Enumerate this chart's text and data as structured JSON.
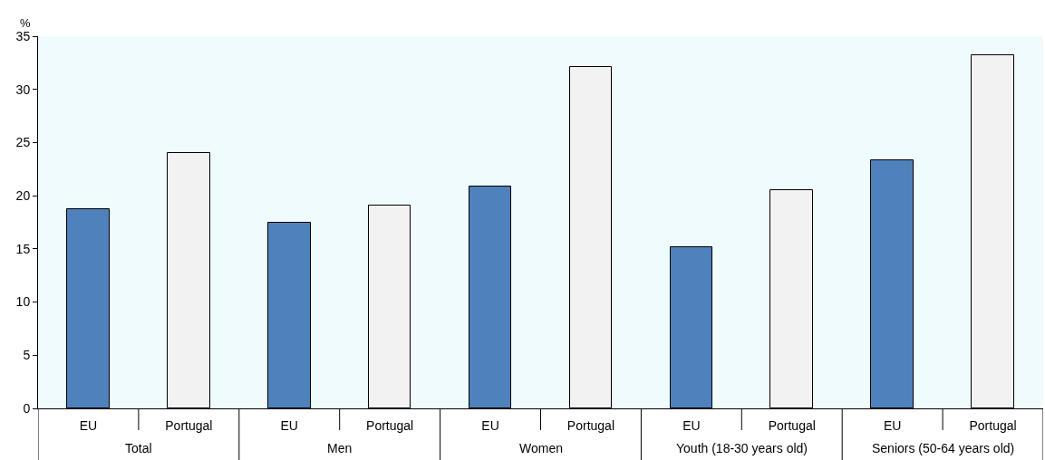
{
  "chart_data": {
    "type": "bar",
    "ylabel": "%",
    "categories": [
      "EU",
      "Portugal",
      "EU",
      "Portugal",
      "EU",
      "Portugal",
      "EU",
      "Portugal",
      "EU",
      "Portugal"
    ],
    "values": [
      18.7,
      24.0,
      17.5,
      19.1,
      20.9,
      32.1,
      15.2,
      20.5,
      23.3,
      33.2
    ],
    "colors": [
      "#4f81bd",
      "#f2f2f2",
      "#4f81bd",
      "#f2f2f2",
      "#4f81bd",
      "#f2f2f2",
      "#4f81bd",
      "#f2f2f2",
      "#4f81bd",
      "#f2f2f2"
    ],
    "annotations": [
      "Total",
      "Men",
      "Women",
      "Youth (18-30 years old)",
      "Seniors (50-64 years old)"
    ],
    "ylim": [
      0,
      35
    ],
    "yticks": [
      0,
      5,
      10,
      15,
      20,
      25,
      30,
      35
    ]
  }
}
